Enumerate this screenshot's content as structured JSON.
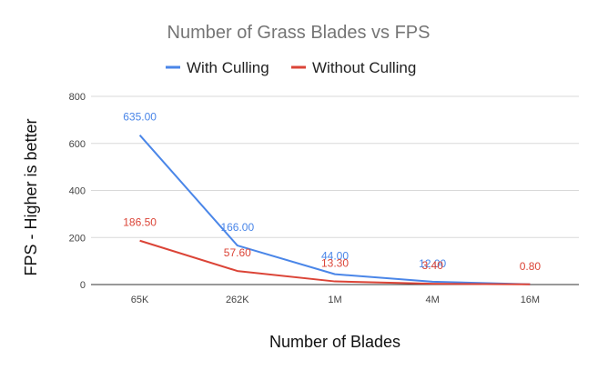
{
  "chart_data": {
    "type": "line",
    "title": "Number of Grass Blades vs FPS",
    "xlabel": "Number of Blades",
    "ylabel": "FPS - Higher is better",
    "categories": [
      "65K",
      "262K",
      "1M",
      "4M",
      "16M"
    ],
    "ylim": [
      0,
      800
    ],
    "yticks": [
      0,
      200,
      400,
      600,
      800
    ],
    "grid": true,
    "legend_position": "top",
    "series": [
      {
        "name": "With Culling",
        "color": "#4a86e8",
        "values": [
          635,
          166,
          44,
          12,
          1
        ],
        "labels": [
          "635.00",
          "166.00",
          "44.00",
          "12.00",
          ""
        ]
      },
      {
        "name": "Without Culling",
        "color": "#db4437",
        "values": [
          186.5,
          57.6,
          13.3,
          3.4,
          0.8
        ],
        "labels": [
          "186.50",
          "57.60",
          "13.30",
          "3.40",
          "0.80"
        ]
      }
    ]
  }
}
